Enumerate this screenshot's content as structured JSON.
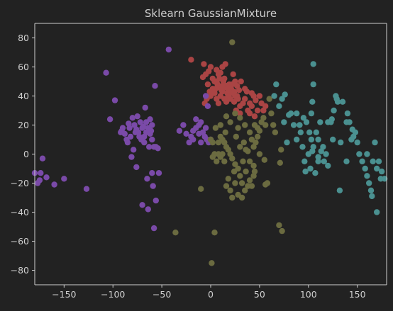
{
  "chart_data": {
    "type": "scatter",
    "title": "Sklearn GaussianMixture",
    "xlabel": "",
    "ylabel": "",
    "xlim": [
      -180,
      180
    ],
    "ylim": [
      -90,
      90
    ],
    "xticks": [
      -150,
      -100,
      -50,
      0,
      50,
      100,
      150
    ],
    "yticks": [
      -80,
      -60,
      -40,
      -20,
      0,
      20,
      40,
      60,
      80
    ],
    "grid": false,
    "legend": "none",
    "colors": {
      "background": "#222222",
      "axes_face": "#222222",
      "spine": "#cfcfcf",
      "text": "#cfcfcf"
    },
    "series": [
      {
        "color": "#aa4444",
        "points": [
          [
            -20,
            65
          ],
          [
            -7,
            62
          ],
          [
            -5,
            55
          ],
          [
            -8,
            53
          ],
          [
            -2,
            57
          ],
          [
            0,
            60
          ],
          [
            2,
            52
          ],
          [
            4,
            50
          ],
          [
            6,
            58
          ],
          [
            8,
            55
          ],
          [
            10,
            56
          ],
          [
            12,
            60
          ],
          [
            15,
            62
          ],
          [
            5,
            45
          ],
          [
            7,
            48
          ],
          [
            9,
            46
          ],
          [
            11,
            44
          ],
          [
            13,
            50
          ],
          [
            15,
            46
          ],
          [
            17,
            42
          ],
          [
            19,
            48
          ],
          [
            21,
            45
          ],
          [
            23,
            55
          ],
          [
            25,
            50
          ],
          [
            27,
            47
          ],
          [
            29,
            44
          ],
          [
            31,
            50
          ],
          [
            0,
            40
          ],
          [
            2,
            45
          ],
          [
            4,
            42
          ],
          [
            6,
            38
          ],
          [
            8,
            35
          ],
          [
            10,
            40
          ],
          [
            12,
            43
          ],
          [
            14,
            38
          ],
          [
            16,
            36
          ],
          [
            18,
            40
          ],
          [
            20,
            38
          ],
          [
            22,
            42
          ],
          [
            24,
            36
          ],
          [
            -3,
            48
          ],
          [
            -1,
            43
          ],
          [
            -4,
            38
          ],
          [
            25,
            40
          ],
          [
            28,
            38
          ],
          [
            30,
            33
          ],
          [
            33,
            35
          ],
          [
            35,
            38
          ],
          [
            37,
            43
          ],
          [
            40,
            35
          ],
          [
            42,
            33
          ],
          [
            44,
            40
          ],
          [
            46,
            37
          ],
          [
            48,
            30
          ],
          [
            50,
            40
          ],
          [
            52,
            35
          ],
          [
            54,
            30
          ],
          [
            56,
            33
          ],
          [
            35,
            45
          ],
          [
            40,
            28
          ],
          [
            45,
            26
          ],
          [
            30,
            28
          ],
          [
            20,
            46
          ],
          [
            18,
            44
          ],
          [
            16,
            47
          ],
          [
            14,
            52
          ],
          [
            22,
            48
          ],
          [
            9,
            52
          ],
          [
            6,
            50
          ],
          [
            12,
            47
          ],
          [
            24,
            43
          ],
          [
            27,
            40
          ],
          [
            38,
            30
          ],
          [
            42,
            42
          ],
          [
            -6,
            35
          ],
          [
            26,
            30
          ]
        ]
      },
      {
        "color": "#7a4aa8",
        "points": [
          [
            -180,
            -13
          ],
          [
            -177,
            -20
          ],
          [
            -174,
            -13
          ],
          [
            -172,
            -3
          ],
          [
            -175,
            -18
          ],
          [
            -168,
            -16
          ],
          [
            -160,
            -21
          ],
          [
            -150,
            -17
          ],
          [
            -127,
            -24
          ],
          [
            -107,
            56
          ],
          [
            -98,
            37
          ],
          [
            -103,
            24
          ],
          [
            -90,
            18
          ],
          [
            -92,
            15
          ],
          [
            -88,
            14
          ],
          [
            -85,
            8
          ],
          [
            -82,
            12
          ],
          [
            -80,
            25
          ],
          [
            -78,
            20
          ],
          [
            -76,
            17
          ],
          [
            -74,
            15
          ],
          [
            -72,
            22
          ],
          [
            -70,
            18
          ],
          [
            -68,
            12
          ],
          [
            -66,
            15
          ],
          [
            -64,
            18
          ],
          [
            -62,
            14
          ],
          [
            -60,
            10
          ],
          [
            -58,
            5
          ],
          [
            -56,
            5
          ],
          [
            -54,
            4
          ],
          [
            -79,
            3
          ],
          [
            -81,
            -2
          ],
          [
            -76,
            -9
          ],
          [
            -65,
            -17
          ],
          [
            -60,
            -13
          ],
          [
            -59,
            -22
          ],
          [
            -53,
            -13
          ],
          [
            -56,
            -32
          ],
          [
            -70,
            -35
          ],
          [
            -64,
            -38
          ],
          [
            -58,
            -51
          ],
          [
            -67,
            32
          ],
          [
            -57,
            47
          ],
          [
            -43,
            72
          ],
          [
            -60,
            20
          ],
          [
            -62,
            24
          ],
          [
            -75,
            26
          ],
          [
            -73,
            12
          ],
          [
            -68,
            8
          ],
          [
            -63,
            5
          ],
          [
            -83,
            18
          ],
          [
            -86,
            10
          ],
          [
            -91,
            16
          ],
          [
            -84,
            21
          ],
          [
            -77,
            15
          ],
          [
            -71,
            10
          ],
          [
            -69,
            19
          ],
          [
            -66,
            22
          ],
          [
            -61,
            16
          ],
          [
            -32,
            16
          ],
          [
            -25,
            14
          ],
          [
            -20,
            12
          ],
          [
            -18,
            10
          ],
          [
            -15,
            18
          ],
          [
            -12,
            20
          ],
          [
            -10,
            22
          ],
          [
            -8,
            15
          ],
          [
            -6,
            12
          ],
          [
            -4,
            10
          ],
          [
            -2,
            8
          ],
          [
            0,
            10
          ],
          [
            -15,
            24
          ],
          [
            -22,
            8
          ],
          [
            -10,
            8
          ],
          [
            -5,
            18
          ],
          [
            -3,
            33
          ],
          [
            -5,
            40
          ],
          [
            -28,
            20
          ],
          [
            -18,
            16
          ],
          [
            -12,
            14
          ]
        ]
      },
      {
        "color": "#6b6b40",
        "points": [
          [
            22,
            77
          ],
          [
            -10,
            -24
          ],
          [
            -36,
            -54
          ],
          [
            4,
            -54
          ],
          [
            1,
            -75
          ],
          [
            70,
            -49
          ],
          [
            73,
            -53
          ],
          [
            72,
            3
          ],
          [
            71,
            -6
          ],
          [
            58,
            -20
          ],
          [
            56,
            -21
          ],
          [
            55,
            -4
          ],
          [
            50,
            0
          ],
          [
            45,
            -12
          ],
          [
            44,
            -15
          ],
          [
            40,
            -18
          ],
          [
            38,
            -22
          ],
          [
            35,
            -25
          ],
          [
            32,
            -20
          ],
          [
            30,
            -15
          ],
          [
            28,
            -10
          ],
          [
            25,
            -7
          ],
          [
            22,
            -3
          ],
          [
            20,
            0
          ],
          [
            18,
            3
          ],
          [
            16,
            5
          ],
          [
            14,
            8
          ],
          [
            12,
            10
          ],
          [
            10,
            12
          ],
          [
            8,
            8
          ],
          [
            6,
            -5
          ],
          [
            4,
            0
          ],
          [
            2,
            8
          ],
          [
            0,
            10
          ],
          [
            5,
            18
          ],
          [
            10,
            20
          ],
          [
            15,
            15
          ],
          [
            20,
            22
          ],
          [
            25,
            28
          ],
          [
            30,
            25
          ],
          [
            35,
            20
          ],
          [
            40,
            15
          ],
          [
            42,
            10
          ],
          [
            44,
            5
          ],
          [
            46,
            8
          ],
          [
            48,
            12
          ],
          [
            50,
            16
          ],
          [
            52,
            22
          ],
          [
            54,
            25
          ],
          [
            56,
            20
          ],
          [
            20,
            -25
          ],
          [
            25,
            -20
          ],
          [
            28,
            -28
          ],
          [
            32,
            -30
          ],
          [
            36,
            -12
          ],
          [
            40,
            -5
          ],
          [
            42,
            -22
          ],
          [
            24,
            -12
          ],
          [
            18,
            -17
          ],
          [
            16,
            -22
          ],
          [
            22,
            -30
          ],
          [
            14,
            -5
          ],
          [
            12,
            0
          ],
          [
            10,
            -2
          ],
          [
            30,
            5
          ],
          [
            34,
            8
          ],
          [
            38,
            2
          ],
          [
            26,
            12
          ],
          [
            16,
            26
          ],
          [
            45,
            20
          ],
          [
            48,
            18
          ],
          [
            60,
            38
          ],
          [
            62,
            28
          ],
          [
            64,
            20
          ],
          [
            66,
            15
          ],
          [
            36,
            3
          ],
          [
            44,
            -8
          ],
          [
            28,
            18
          ],
          [
            8,
            0
          ],
          [
            2,
            -2
          ],
          [
            33,
            -5
          ]
        ]
      },
      {
        "color": "#4a9090",
        "points": [
          [
            105,
            62
          ],
          [
            67,
            48
          ],
          [
            73,
            38
          ],
          [
            76,
            41
          ],
          [
            65,
            40
          ],
          [
            70,
            33
          ],
          [
            82,
            28
          ],
          [
            88,
            28
          ],
          [
            91,
            20
          ],
          [
            95,
            25
          ],
          [
            98,
            22
          ],
          [
            101,
            15
          ],
          [
            103,
            10
          ],
          [
            105,
            5
          ],
          [
            100,
            0
          ],
          [
            104,
            2
          ],
          [
            110,
            -2
          ],
          [
            113,
            2
          ],
          [
            116,
            -5
          ],
          [
            124,
            24
          ],
          [
            120,
            22
          ],
          [
            126,
            30
          ],
          [
            128,
            40
          ],
          [
            130,
            36
          ],
          [
            135,
            36
          ],
          [
            140,
            28
          ],
          [
            142,
            22
          ],
          [
            145,
            17
          ],
          [
            146,
            12
          ],
          [
            150,
            8
          ],
          [
            152,
            0
          ],
          [
            155,
            -5
          ],
          [
            158,
            -10
          ],
          [
            160,
            -15
          ],
          [
            162,
            -20
          ],
          [
            164,
            -25
          ],
          [
            165,
            -29
          ],
          [
            170,
            -40
          ],
          [
            172,
            -5
          ],
          [
            175,
            -12
          ],
          [
            174,
            -17
          ],
          [
            170,
            -10
          ],
          [
            166,
            -5
          ],
          [
            168,
            8
          ],
          [
            160,
            0
          ],
          [
            178,
            -17
          ],
          [
            139,
            -5
          ],
          [
            132,
            -25
          ],
          [
            120,
            -8
          ],
          [
            107,
            -13
          ],
          [
            102,
            -10
          ],
          [
            97,
            -12
          ],
          [
            105,
            48
          ],
          [
            104,
            36
          ],
          [
            112,
            22
          ],
          [
            115,
            5
          ],
          [
            118,
            0
          ],
          [
            129,
            38
          ],
          [
            123,
            22
          ],
          [
            92,
            15
          ],
          [
            85,
            20
          ],
          [
            80,
            27
          ],
          [
            75,
            22
          ],
          [
            78,
            8
          ],
          [
            88,
            10
          ],
          [
            94,
            5
          ],
          [
            96,
            -5
          ],
          [
            103,
            28
          ],
          [
            108,
            15
          ],
          [
            110,
            10
          ],
          [
            125,
            10
          ],
          [
            133,
            8
          ],
          [
            144,
            10
          ],
          [
            148,
            15
          ],
          [
            110,
            -5
          ],
          [
            139,
            22
          ]
        ]
      }
    ]
  }
}
